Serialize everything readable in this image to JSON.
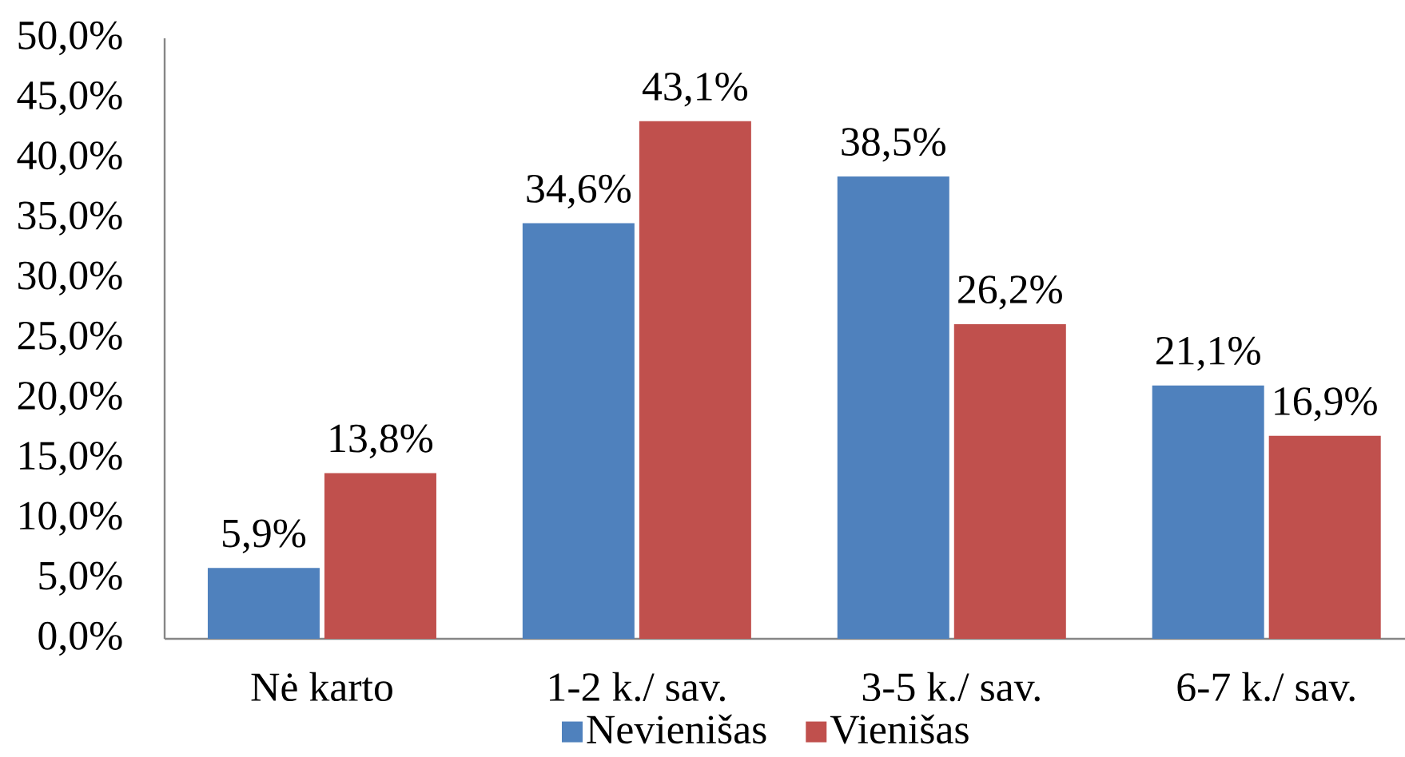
{
  "chart_data": {
    "type": "bar",
    "categories": [
      "Nė karto",
      "1-2 k./ sav.",
      "3-5 k./ sav.",
      "6-7 k./ sav."
    ],
    "series": [
      {
        "name": "Nevienišas",
        "color": "#4f81bd",
        "values": [
          5.9,
          34.6,
          38.5,
          21.1
        ],
        "value_labels": [
          "5,9%",
          "34,6%",
          "38,5%",
          "21,1%"
        ]
      },
      {
        "name": "Vienišas",
        "color": "#c0504d",
        "values": [
          13.8,
          43.1,
          26.2,
          16.9
        ],
        "value_labels": [
          "13,8%",
          "43,1%",
          "26,2%",
          "16,9%"
        ]
      }
    ],
    "ylim": [
      0,
      50
    ],
    "yticks": [
      {
        "value": 0,
        "label": "0,0%"
      },
      {
        "value": 5,
        "label": "5,0%"
      },
      {
        "value": 10,
        "label": "10,0%"
      },
      {
        "value": 15,
        "label": "15,0%"
      },
      {
        "value": 20,
        "label": "20,0%"
      },
      {
        "value": 25,
        "label": "25,0%"
      },
      {
        "value": 30,
        "label": "30,0%"
      },
      {
        "value": 35,
        "label": "35,0%"
      },
      {
        "value": 40,
        "label": "40,0%"
      },
      {
        "value": 45,
        "label": "45,0%"
      },
      {
        "value": 50,
        "label": "50,0%"
      }
    ],
    "grid": false,
    "legend": "bottom"
  }
}
